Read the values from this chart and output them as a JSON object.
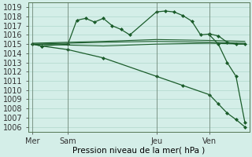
{
  "title": "",
  "xlabel": "Pression niveau de la mer( hPa )",
  "ylabel": "",
  "bg_color": "#d4eee8",
  "grid_color": "#b0d8cc",
  "line_color": "#1a5c2a",
  "ylim": [
    1005.5,
    1019.5
  ],
  "yticks": [
    1006,
    1007,
    1008,
    1009,
    1010,
    1011,
    1012,
    1013,
    1014,
    1015,
    1016,
    1017,
    1018,
    1019
  ],
  "xtick_labels": [
    "Mer",
    "Sam",
    "Jeu",
    "Ven"
  ],
  "xtick_positions": [
    0,
    4,
    14,
    20
  ],
  "xlim": [
    -0.5,
    24.5
  ],
  "lines": [
    {
      "x": [
        0,
        1,
        4,
        5,
        6,
        7,
        8,
        9,
        10,
        11,
        14,
        15,
        16,
        17,
        18,
        19,
        20,
        21,
        22,
        23,
        24
      ],
      "y": [
        1015.0,
        1014.8,
        1015.0,
        1017.6,
        1017.8,
        1017.4,
        1017.8,
        1017.0,
        1016.6,
        1016.0,
        1018.5,
        1018.6,
        1018.5,
        1018.1,
        1017.5,
        1016.0,
        1016.1,
        1015.9,
        1015.2,
        1015.0,
        1015.0
      ],
      "marker": "D",
      "ms": 2.0,
      "lw": 0.9
    },
    {
      "x": [
        0,
        4,
        8,
        14,
        20,
        24
      ],
      "y": [
        1015.0,
        1015.1,
        1015.2,
        1015.3,
        1015.2,
        1015.1
      ],
      "marker": null,
      "ms": 0,
      "lw": 0.8
    },
    {
      "x": [
        0,
        4,
        8,
        14,
        20,
        24
      ],
      "y": [
        1015.0,
        1014.9,
        1014.8,
        1015.0,
        1015.1,
        1015.0
      ],
      "marker": null,
      "ms": 0,
      "lw": 0.8
    },
    {
      "x": [
        0,
        4,
        8,
        14,
        20,
        24
      ],
      "y": [
        1015.1,
        1015.2,
        1015.3,
        1015.5,
        1015.4,
        1015.3
      ],
      "marker": null,
      "ms": 0,
      "lw": 0.8
    },
    {
      "x": [
        0,
        1,
        4,
        8,
        14,
        17,
        20,
        21,
        22,
        23,
        24
      ],
      "y": [
        1015.0,
        1014.8,
        1014.4,
        1013.5,
        1011.5,
        1010.5,
        1009.5,
        1008.5,
        1007.5,
        1006.8,
        1006.0
      ],
      "marker": "D",
      "ms": 2.0,
      "lw": 0.9
    },
    {
      "x": [
        20,
        21,
        22,
        23,
        24
      ],
      "y": [
        1016.0,
        1015.0,
        1013.0,
        1011.5,
        1006.5
      ],
      "marker": "D",
      "ms": 2.0,
      "lw": 0.9
    }
  ],
  "vlines": [
    0,
    4,
    14,
    20
  ],
  "vline_color": "#556655",
  "fontsize": 7.0
}
